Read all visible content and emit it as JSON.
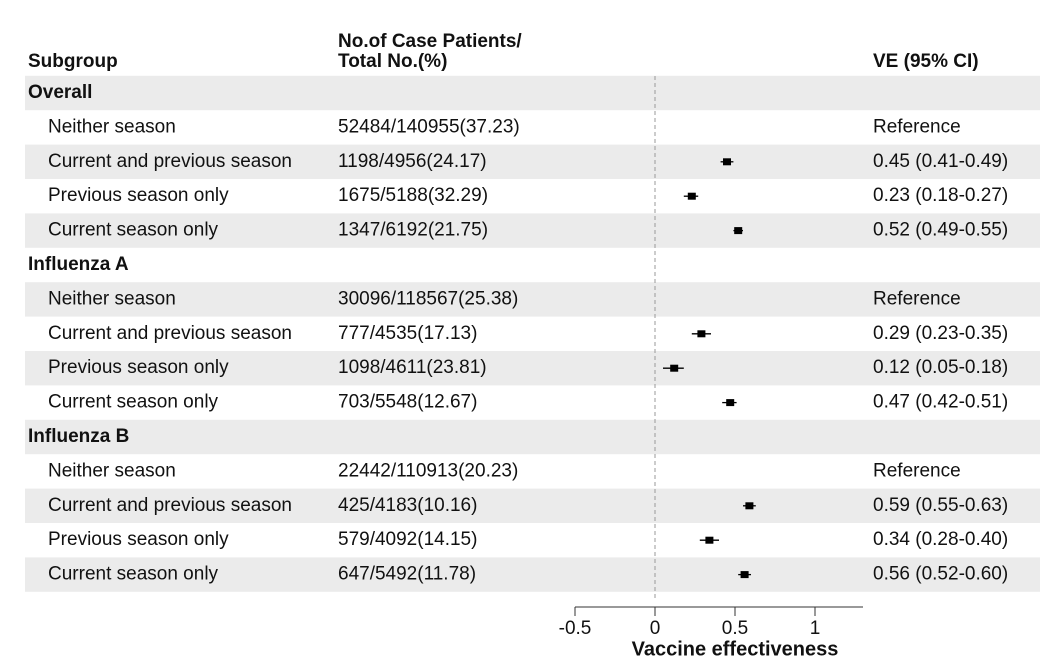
{
  "chart_data": {
    "type": "forest",
    "headers": {
      "subgroup": "Subgroup",
      "cases_line1": "No.of Case Patients/",
      "cases_line2": "Total No.(%)",
      "ve": "VE (95% CI)"
    },
    "x_label": "Vaccine effectiveness",
    "xlim": [
      -0.5,
      1.3
    ],
    "xticks": [
      -0.5,
      0,
      0.5,
      1
    ],
    "reference_line": 0,
    "color": "#000000",
    "groups": [
      {
        "name": "Overall",
        "rows": [
          {
            "label": "Neither season",
            "cases": "52484/140955(37.23)",
            "ve_label": "Reference",
            "ve": null,
            "lower": null,
            "upper": null
          },
          {
            "label": "Current and previous season",
            "cases": "1198/4956(24.17)",
            "ve_label": "0.45 (0.41-0.49)",
            "ve": 0.45,
            "lower": 0.41,
            "upper": 0.49
          },
          {
            "label": "Previous season only",
            "cases": "1675/5188(32.29)",
            "ve_label": "0.23 (0.18-0.27)",
            "ve": 0.23,
            "lower": 0.18,
            "upper": 0.27
          },
          {
            "label": "Current season only",
            "cases": "1347/6192(21.75)",
            "ve_label": "0.52 (0.49-0.55)",
            "ve": 0.52,
            "lower": 0.49,
            "upper": 0.55
          }
        ]
      },
      {
        "name": "Influenza A",
        "rows": [
          {
            "label": "Neither season",
            "cases": "30096/118567(25.38)",
            "ve_label": "Reference",
            "ve": null,
            "lower": null,
            "upper": null
          },
          {
            "label": "Current and previous season",
            "cases": "777/4535(17.13)",
            "ve_label": "0.29 (0.23-0.35)",
            "ve": 0.29,
            "lower": 0.23,
            "upper": 0.35
          },
          {
            "label": "Previous season only",
            "cases": "1098/4611(23.81)",
            "ve_label": "0.12 (0.05-0.18)",
            "ve": 0.12,
            "lower": 0.05,
            "upper": 0.18
          },
          {
            "label": "Current season only",
            "cases": "703/5548(12.67)",
            "ve_label": "0.47 (0.42-0.51)",
            "ve": 0.47,
            "lower": 0.42,
            "upper": 0.51
          }
        ]
      },
      {
        "name": "Influenza B",
        "rows": [
          {
            "label": "Neither season",
            "cases": "22442/110913(20.23)",
            "ve_label": "Reference",
            "ve": null,
            "lower": null,
            "upper": null
          },
          {
            "label": "Current and previous season",
            "cases": "425/4183(10.16)",
            "ve_label": "0.59 (0.55-0.63)",
            "ve": 0.59,
            "lower": 0.55,
            "upper": 0.63
          },
          {
            "label": "Previous season only",
            "cases": "579/4092(14.15)",
            "ve_label": "0.34 (0.28-0.40)",
            "ve": 0.34,
            "lower": 0.28,
            "upper": 0.4
          },
          {
            "label": "Current season only",
            "cases": "647/5492(11.78)",
            "ve_label": "0.56 (0.52-0.60)",
            "ve": 0.56,
            "lower": 0.52,
            "upper": 0.6
          }
        ]
      }
    ]
  }
}
